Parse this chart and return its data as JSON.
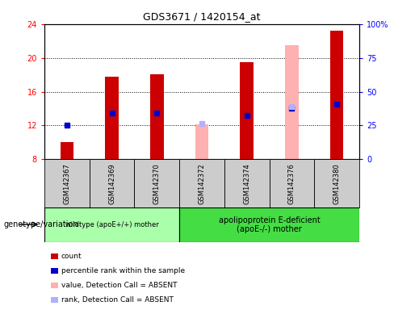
{
  "title": "GDS3671 / 1420154_at",
  "samples": [
    "GSM142367",
    "GSM142369",
    "GSM142370",
    "GSM142372",
    "GSM142374",
    "GSM142376",
    "GSM142380"
  ],
  "count_values": [
    10.0,
    17.8,
    18.1,
    null,
    19.5,
    null,
    23.2
  ],
  "rank_values": [
    12.0,
    13.5,
    13.5,
    null,
    13.2,
    14.0,
    14.5
  ],
  "absent_value_values": [
    null,
    null,
    null,
    12.1,
    null,
    21.5,
    null
  ],
  "absent_rank_values": [
    null,
    null,
    null,
    12.2,
    null,
    14.2,
    null
  ],
  "ylim": [
    8,
    24
  ],
  "y2lim": [
    0,
    100
  ],
  "yticks": [
    8,
    12,
    16,
    20,
    24
  ],
  "y2ticks": [
    0,
    25,
    50,
    75,
    100
  ],
  "y2tick_labels": [
    "0",
    "25",
    "50",
    "75",
    "100%"
  ],
  "bar_width": 0.3,
  "color_count": "#CC0000",
  "color_rank": "#0000CC",
  "color_absent_value": "#FFB0B0",
  "color_absent_rank": "#B0B0FF",
  "group1_label": "wildtype (apoE+/+) mother",
  "group2_label": "apolipoprotein E-deficient\n(apoE-/-) mother",
  "group1_indices": [
    0,
    1,
    2
  ],
  "group2_indices": [
    3,
    4,
    5,
    6
  ],
  "color_group1": "#AAFFAA",
  "color_group2": "#44DD44",
  "color_xtick_bg": "#CCCCCC",
  "legend_items": [
    {
      "label": "count",
      "color": "#CC0000"
    },
    {
      "label": "percentile rank within the sample",
      "color": "#0000CC"
    },
    {
      "label": "value, Detection Call = ABSENT",
      "color": "#FFB0B0"
    },
    {
      "label": "rank, Detection Call = ABSENT",
      "color": "#B0B0FF"
    }
  ]
}
